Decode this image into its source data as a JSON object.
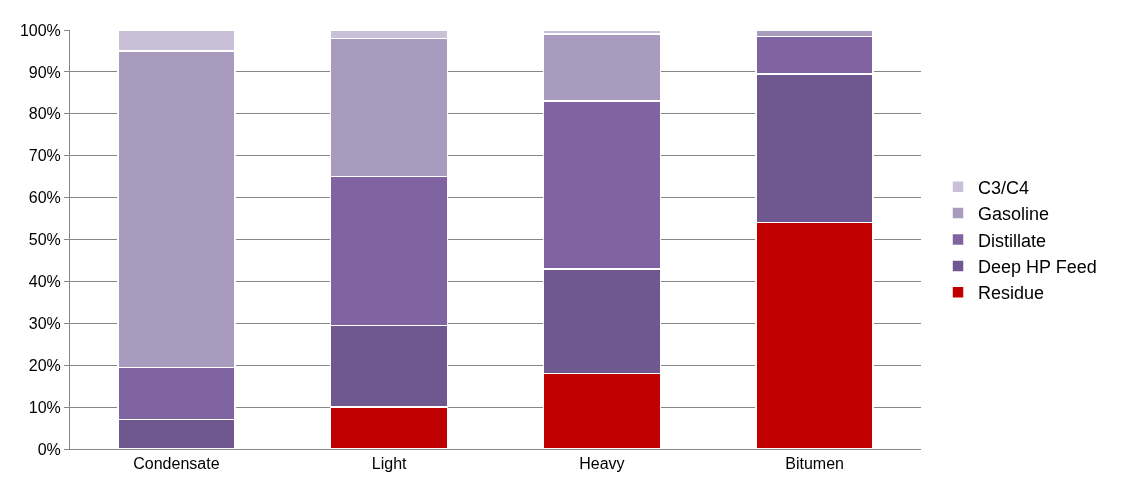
{
  "chart_data": {
    "type": "bar",
    "stacked": true,
    "categories": [
      "Condensate",
      "Light",
      "Heavy",
      "Bitumen"
    ],
    "series": [
      {
        "name": "Residue",
        "color": "#c00000",
        "values": [
          null,
          10,
          18,
          54
        ]
      },
      {
        "name": "Deep HP Feed",
        "color": "#6f588f",
        "values": [
          7,
          19.5,
          25,
          35.5
        ]
      },
      {
        "name": "Distillate",
        "color": "#8064a2",
        "values": [
          12.5,
          35.5,
          40,
          9
        ]
      },
      {
        "name": "Gasoline",
        "color": "#a99bbe",
        "values": [
          75.5,
          33,
          16,
          1.5
        ]
      },
      {
        "name": "C3/C4",
        "color": "#c7c0d7",
        "values": [
          5,
          2,
          1,
          null
        ]
      }
    ],
    "ylim": [
      0,
      100
    ],
    "yticks": [
      {
        "value": 0,
        "label": "0%"
      },
      {
        "value": 10,
        "label": "10%"
      },
      {
        "value": 20,
        "label": "20%"
      },
      {
        "value": 30,
        "label": "30%"
      },
      {
        "value": 40,
        "label": "40%"
      },
      {
        "value": 50,
        "label": "50%"
      },
      {
        "value": 60,
        "label": "60%"
      },
      {
        "value": 70,
        "label": "70%"
      },
      {
        "value": 80,
        "label": "80%"
      },
      {
        "value": 90,
        "label": "90%"
      },
      {
        "value": 100,
        "label": "100%"
      }
    ],
    "grid": "y",
    "legend": "right"
  }
}
